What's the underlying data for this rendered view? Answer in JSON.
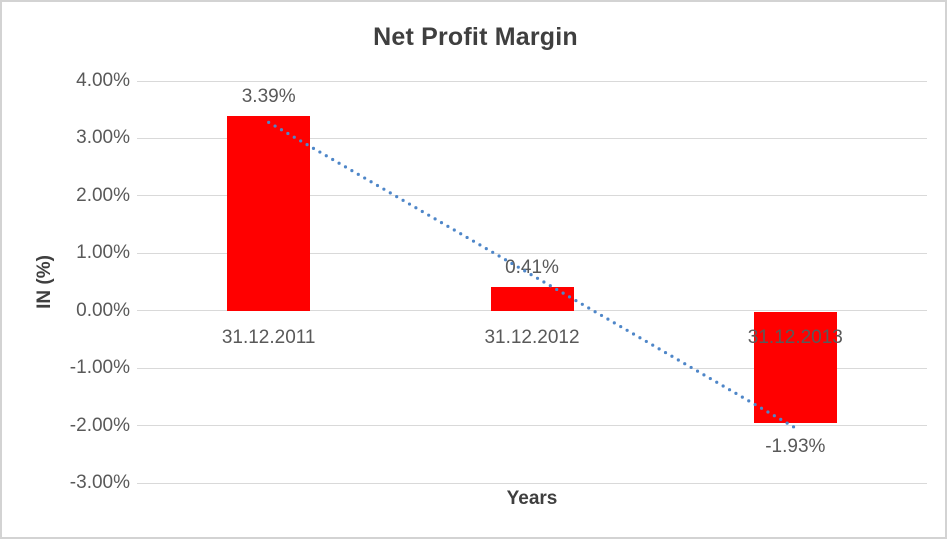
{
  "chart_data": {
    "type": "bar",
    "title": "Net Profit Margin",
    "xlabel": "Years",
    "ylabel": "IN (%)",
    "categories": [
      "31.12.2011",
      "31.12.2012",
      "31.12.2013"
    ],
    "values": [
      3.39,
      0.41,
      -1.93
    ],
    "data_labels": [
      "3.39%",
      "0.41%",
      "-1.93%"
    ],
    "ylim": [
      -3,
      4
    ],
    "ytick_step": 1,
    "ytick_labels": [
      "4.00%",
      "3.00%",
      "2.00%",
      "1.00%",
      "0.00%",
      "-1.00%",
      "-2.00%",
      "-3.00%"
    ],
    "grid": true,
    "legend": "none",
    "trendline": {
      "type": "linear",
      "style": "dotted",
      "start_value": 3.28,
      "end_value": -2.04,
      "color": "#4e86c8"
    },
    "colors": {
      "bar": "#ff0000",
      "gridline": "#d9d9d9",
      "axis_text": "#595959",
      "title_text": "#3f3f3f",
      "frame_border": "#d3d3d3"
    }
  }
}
